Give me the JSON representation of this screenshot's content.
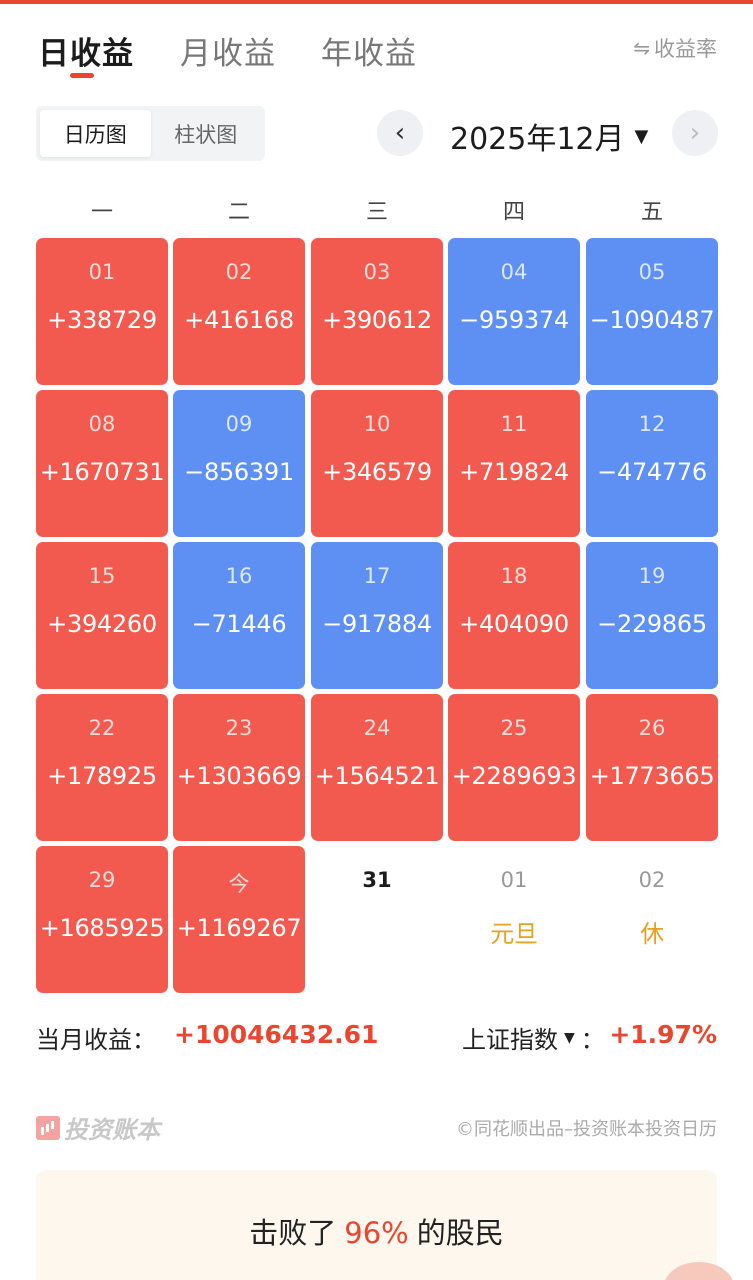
{
  "tabs": [
    {
      "label": "日收益",
      "active": true
    },
    {
      "label": "月收益",
      "active": false
    },
    {
      "label": "年收益",
      "active": false
    }
  ],
  "rate_toggle": {
    "icon": "swap-icon",
    "label": "收益率"
  },
  "view_switch": [
    {
      "label": "日历图",
      "active": true
    },
    {
      "label": "柱状图",
      "active": false
    }
  ],
  "month_nav": {
    "prev_icon": "chevron-left-icon",
    "next_icon": "chevron-right-icon",
    "current": "2025年12月"
  },
  "weekdays": [
    "一",
    "二",
    "三",
    "四",
    "五"
  ],
  "calendar": [
    {
      "day": "01",
      "value": "+338729",
      "state": "up"
    },
    {
      "day": "02",
      "value": "+416168",
      "state": "up"
    },
    {
      "day": "03",
      "value": "+390612",
      "state": "up"
    },
    {
      "day": "04",
      "value": "−959374",
      "state": "down"
    },
    {
      "day": "05",
      "value": "−1090487",
      "state": "down"
    },
    {
      "day": "08",
      "value": "+1670731",
      "state": "up"
    },
    {
      "day": "09",
      "value": "−856391",
      "state": "down"
    },
    {
      "day": "10",
      "value": "+346579",
      "state": "up"
    },
    {
      "day": "11",
      "value": "+719824",
      "state": "up"
    },
    {
      "day": "12",
      "value": "−474776",
      "state": "down"
    },
    {
      "day": "15",
      "value": "+394260",
      "state": "up"
    },
    {
      "day": "16",
      "value": "−71446",
      "state": "down"
    },
    {
      "day": "17",
      "value": "−917884",
      "state": "down"
    },
    {
      "day": "18",
      "value": "+404090",
      "state": "up"
    },
    {
      "day": "19",
      "value": "−229865",
      "state": "down"
    },
    {
      "day": "22",
      "value": "+178925",
      "state": "up"
    },
    {
      "day": "23",
      "value": "+1303669",
      "state": "up"
    },
    {
      "day": "24",
      "value": "+1564521",
      "state": "up"
    },
    {
      "day": "25",
      "value": "+2289693",
      "state": "up"
    },
    {
      "day": "26",
      "value": "+1773665",
      "state": "up"
    },
    {
      "day": "29",
      "value": "+1685925",
      "state": "up"
    },
    {
      "day": "今",
      "value": "+1169267",
      "state": "up"
    },
    {
      "day": "31",
      "value": "",
      "state": "today-plain"
    },
    {
      "day": "01",
      "value": "元旦",
      "state": "plain"
    },
    {
      "day": "02",
      "value": "休",
      "state": "plain"
    }
  ],
  "summary": {
    "month_label": "当月收益：",
    "month_value": "+10046432.61",
    "index_label": "上证指数",
    "index_suffix": "：",
    "index_value": "+1.97%"
  },
  "footer": {
    "brand": "投资账本",
    "credit": "©同花顺出品–投资账本投资日历"
  },
  "beat": {
    "prefix": "击败了",
    "percent": "96%",
    "suffix": "的股民"
  },
  "colors": {
    "up": "#f25a50",
    "down": "#5e8ff2",
    "accent": "#e9452f",
    "holiday": "#e7a020"
  }
}
